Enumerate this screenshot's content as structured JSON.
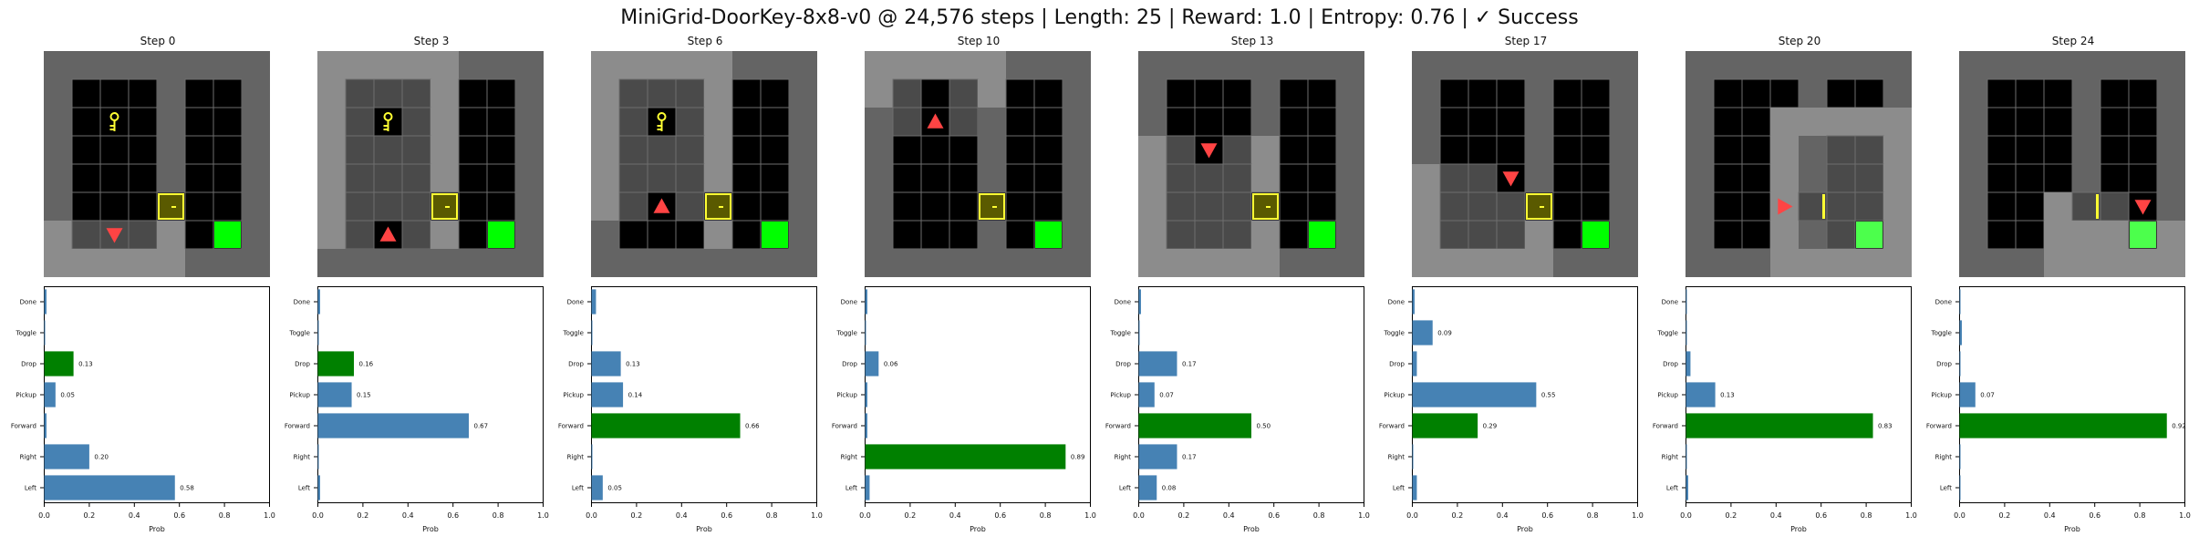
{
  "page": {
    "title": "MiniGrid-DoorKey-8x8-v0 @ 24,576 steps | Length: 25 | Reward: 1.0 | Entropy: 0.76 | ✓ Success"
  },
  "colors": {
    "bar": "#4682b4",
    "bar_selected": "#008000",
    "wall": "#646464",
    "floor_visible": "#8c8c8c",
    "cell_unseen": "#000000",
    "cell_seen": "#4a4a4a",
    "grid_line": "#6e6e6e",
    "key": "#ffff33",
    "door_fill": "#5a5a00",
    "door_border": "#ffff33",
    "goal": "#00ff00",
    "goal_seen": "#4cff4c",
    "agent": "#ff4444"
  },
  "chart_data": [
    {
      "type": "bar",
      "title": "Step 0",
      "xlabel": "Prob",
      "categories": [
        "Left",
        "Right",
        "Forward",
        "Pickup",
        "Drop",
        "Toggle",
        "Done"
      ],
      "values": [
        0.58,
        0.2,
        0.01,
        0.05,
        0.13,
        0.0,
        0.01
      ],
      "labels": [
        "0.58",
        "0.20",
        "",
        "0.05",
        "0.13",
        "",
        ""
      ],
      "selected": "Drop",
      "xlim": [
        0,
        1
      ],
      "xticks": [
        "0.0",
        "0.2",
        "0.4",
        "0.6",
        "0.8",
        "1.0"
      ]
    },
    {
      "type": "bar",
      "title": "Step 3",
      "xlabel": "Prob",
      "categories": [
        "Left",
        "Right",
        "Forward",
        "Pickup",
        "Drop",
        "Toggle",
        "Done"
      ],
      "values": [
        0.01,
        0.0,
        0.67,
        0.15,
        0.16,
        0.0,
        0.01
      ],
      "labels": [
        "",
        "",
        "0.67",
        "0.15",
        "0.16",
        "",
        ""
      ],
      "selected": "Drop",
      "xlim": [
        0,
        1
      ],
      "xticks": [
        "0.0",
        "0.2",
        "0.4",
        "0.6",
        "0.8",
        "1.0"
      ]
    },
    {
      "type": "bar",
      "title": "Step 6",
      "xlabel": "Prob",
      "categories": [
        "Left",
        "Right",
        "Forward",
        "Pickup",
        "Drop",
        "Toggle",
        "Done"
      ],
      "values": [
        0.05,
        0.0,
        0.66,
        0.14,
        0.13,
        0.0,
        0.02
      ],
      "labels": [
        "0.05",
        "",
        "0.66",
        "0.14",
        "0.13",
        "",
        ""
      ],
      "selected": "Forward",
      "xlim": [
        0,
        1
      ],
      "xticks": [
        "0.0",
        "0.2",
        "0.4",
        "0.6",
        "0.8",
        "1.0"
      ]
    },
    {
      "type": "bar",
      "title": "Step 10",
      "xlabel": "Prob",
      "categories": [
        "Left",
        "Right",
        "Forward",
        "Pickup",
        "Drop",
        "Toggle",
        "Done"
      ],
      "values": [
        0.02,
        0.89,
        0.01,
        0.01,
        0.06,
        0.0,
        0.01
      ],
      "labels": [
        "",
        "0.89",
        "",
        "",
        "0.06",
        "",
        ""
      ],
      "selected": "Right",
      "xlim": [
        0,
        1
      ],
      "xticks": [
        "0.0",
        "0.2",
        "0.4",
        "0.6",
        "0.8",
        "1.0"
      ]
    },
    {
      "type": "bar",
      "title": "Step 13",
      "xlabel": "Prob",
      "categories": [
        "Left",
        "Right",
        "Forward",
        "Pickup",
        "Drop",
        "Toggle",
        "Done"
      ],
      "values": [
        0.08,
        0.17,
        0.5,
        0.07,
        0.17,
        0.0,
        0.01
      ],
      "labels": [
        "0.08",
        "0.17",
        "0.50",
        "0.07",
        "0.17",
        "",
        ""
      ],
      "selected": "Forward",
      "xlim": [
        0,
        1
      ],
      "xticks": [
        "0.0",
        "0.2",
        "0.4",
        "0.6",
        "0.8",
        "1.0"
      ]
    },
    {
      "type": "bar",
      "title": "Step 17",
      "xlabel": "Prob",
      "categories": [
        "Left",
        "Right",
        "Forward",
        "Pickup",
        "Drop",
        "Toggle",
        "Done"
      ],
      "values": [
        0.02,
        0.0,
        0.29,
        0.55,
        0.02,
        0.09,
        0.01
      ],
      "labels": [
        "",
        "",
        "0.29",
        "0.55",
        "",
        "0.09",
        ""
      ],
      "selected": "Forward",
      "xlim": [
        0,
        1
      ],
      "xticks": [
        "0.0",
        "0.2",
        "0.4",
        "0.6",
        "0.8",
        "1.0"
      ]
    },
    {
      "type": "bar",
      "title": "Step 20",
      "xlabel": "Prob",
      "categories": [
        "Left",
        "Right",
        "Forward",
        "Pickup",
        "Drop",
        "Toggle",
        "Done"
      ],
      "values": [
        0.01,
        0.0,
        0.83,
        0.13,
        0.02,
        0.0,
        0.0
      ],
      "labels": [
        "",
        "",
        "0.83",
        "0.13",
        "",
        "",
        ""
      ],
      "selected": "Forward",
      "xlim": [
        0,
        1
      ],
      "xticks": [
        "0.0",
        "0.2",
        "0.4",
        "0.6",
        "0.8",
        "1.0"
      ]
    },
    {
      "type": "bar",
      "title": "Step 24",
      "xlabel": "Prob",
      "categories": [
        "Left",
        "Right",
        "Forward",
        "Pickup",
        "Drop",
        "Toggle",
        "Done"
      ],
      "values": [
        0.0,
        0.0,
        0.92,
        0.07,
        0.0,
        0.01,
        0.0
      ],
      "labels": [
        "",
        "",
        "0.92",
        "0.07",
        "",
        "",
        ""
      ],
      "selected": "Forward",
      "xlim": [
        0,
        1
      ],
      "xticks": [
        "0.0",
        "0.2",
        "0.4",
        "0.6",
        "0.8",
        "1.0"
      ]
    }
  ],
  "grids": [
    {
      "agent": [
        2,
        6,
        "down"
      ],
      "wall": "0;1;2;3;4;5;6;7;8;9;10;11;12;13;14;15;16;17;18;19;20;21;22;23;24;25;26;27;28;29;30;31;32;33;34;35;36;37;38;39;40;41;42;43;44;45;46;47;48;49;50;51;52;53;54;55;56;57;58;59;60;61;62;63",
      "floor": "0,6;0,7;1,7;2,7;3,7;4,7;4,6",
      "seen": "1,6;2,6;3,6",
      "key": [
        2,
        2
      ],
      "door": [
        4,
        5
      ],
      "goal": [
        6,
        6
      ]
    },
    {
      "agent": [
        2,
        6,
        "up"
      ],
      "floor": "0,0;1,0;2,0;3,0;4,0;0,1;0,2;0,3;0,4;0,5;0,6;4,1;4,2;4,3;4,4;4,6",
      "seen": "1,1;2,1;3,1;1,2;3,2;1,3;2,3;3,3;1,4;2,4;3,4;1,5;2,5;3,5;1,6;3,6",
      "key": [
        2,
        2
      ],
      "door": [
        4,
        5
      ],
      "goal": [
        6,
        6
      ]
    },
    {
      "agent": [
        2,
        5,
        "up"
      ],
      "floor": "0,0;1,0;2,0;3,0;4,0;0,1;0,2;0,3;0,4;0,5;4,1;4,2;4,3;4,4;4,6",
      "seen": "1,1;2,1;3,1;1,2;3,2;1,3;2,3;3,3;1,4;2,4;3,4;1,5;3,5",
      "key": [
        2,
        2
      ],
      "door": [
        4,
        5
      ],
      "goal": [
        6,
        6
      ]
    },
    {
      "agent": [
        2,
        2,
        "up"
      ],
      "floor": "0,0;1,0;2,0;3,0;4,0;0,1;4,1",
      "seen": "1,1;3,1;1,2;3,2",
      "door": [
        4,
        5
      ],
      "goal": [
        6,
        6
      ]
    },
    {
      "agent": [
        2,
        3,
        "down"
      ],
      "floor": "0,3;0,4;0,5;0,6;0,7;1,7;2,7;3,7;4,7;4,3;4,4;4,6",
      "seen": "1,3;3,3;1,4;2,4;3,4;1,5;2,5;3,5;1,6;2,6;3,6",
      "door": [
        4,
        5
      ],
      "goal": [
        6,
        6
      ]
    },
    {
      "agent": [
        3,
        4,
        "down"
      ],
      "floor": "0,4;0,5;0,6;0,7;1,7;2,7;3,7;4,7;4,6",
      "seen": "1,4;2,4;4,4;1,5;2,5;3,5;1,6;2,6;3,6",
      "door": [
        4,
        5
      ],
      "goal": [
        6,
        6
      ]
    },
    {
      "agent": [
        3,
        5,
        "right"
      ],
      "floor": "3,2;4,2;5,2;6,2;7,2;3,3;7,3;3,4;7,4;3,5;7,5;3,6;7,6;3,7;4,7;5,7;6,7;7,7",
      "seen": "4,3;5,3;6,3;4,4;5,4;6,4;4,5;5,5;6,5;4,6;5,6",
      "door": [
        4,
        5
      ],
      "goal": [
        6,
        6
      ],
      "open": true
    },
    {
      "agent": [
        6,
        5,
        "down"
      ],
      "floor": "3,5;3,6;3,7;4,7;5,7;6,7;7,7;4,6;5,6;7,6",
      "seen": "4,5;5,5;7,5",
      "door": [
        4,
        5
      ],
      "goal": [
        6,
        6
      ],
      "open": true
    }
  ]
}
